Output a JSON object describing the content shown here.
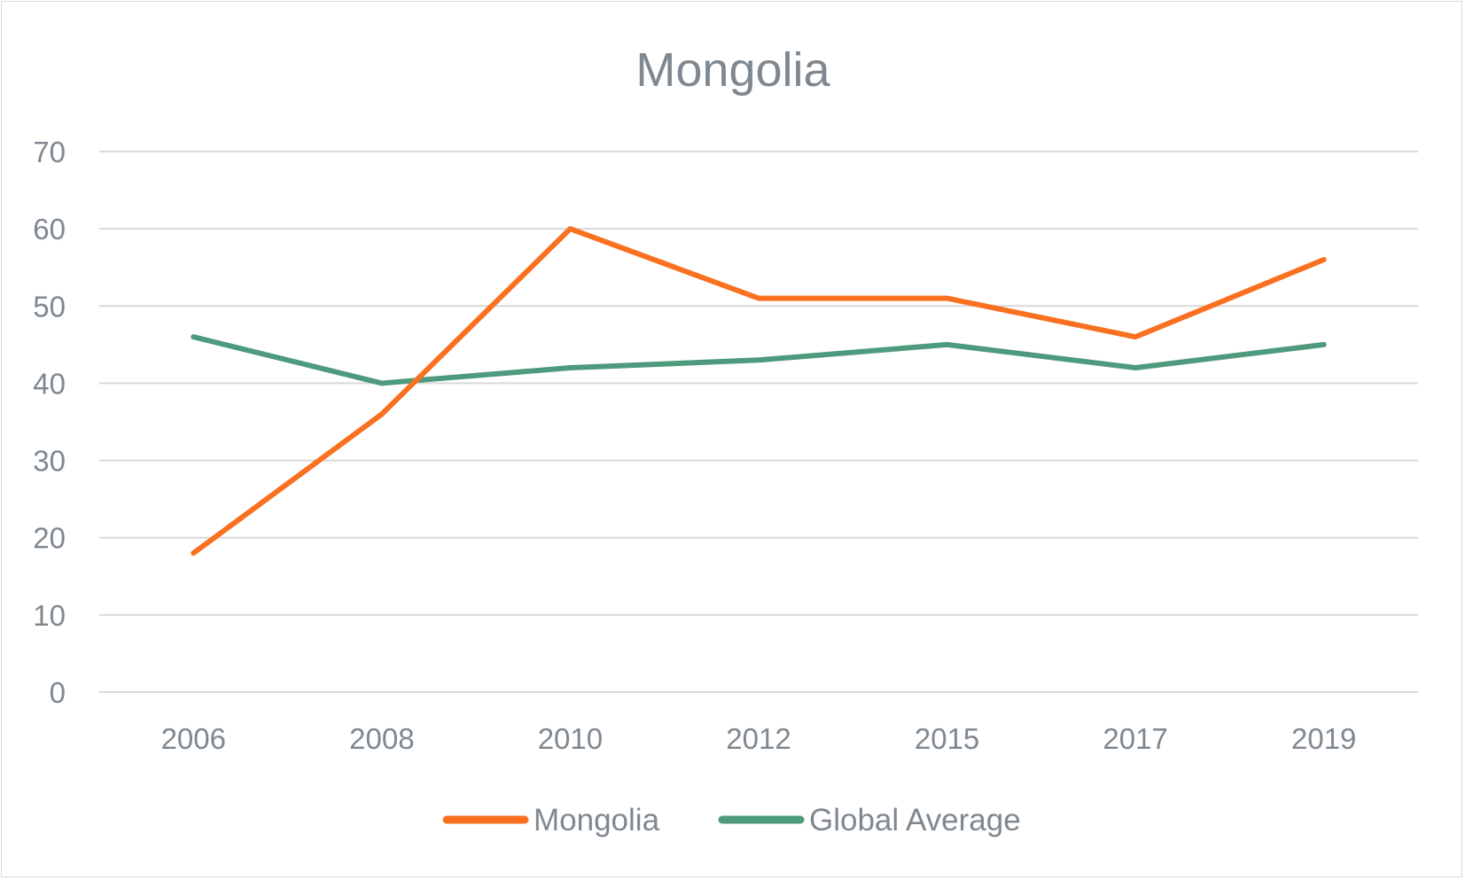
{
  "chart_data": {
    "type": "line",
    "title": "Mongolia",
    "xlabel": "",
    "ylabel": "",
    "categories": [
      "2006",
      "2008",
      "2010",
      "2012",
      "2015",
      "2017",
      "2019"
    ],
    "ylim": [
      0,
      70
    ],
    "yticks": [
      0,
      10,
      20,
      30,
      40,
      50,
      60,
      70
    ],
    "grid": true,
    "legend_position": "bottom",
    "series": [
      {
        "name": "Mongolia",
        "color": "#f97120",
        "values": [
          18,
          36,
          60,
          51,
          51,
          46,
          56
        ]
      },
      {
        "name": "Global Average",
        "color": "#4e9a7d",
        "values": [
          46,
          40,
          42,
          43,
          45,
          42,
          45
        ]
      }
    ]
  }
}
